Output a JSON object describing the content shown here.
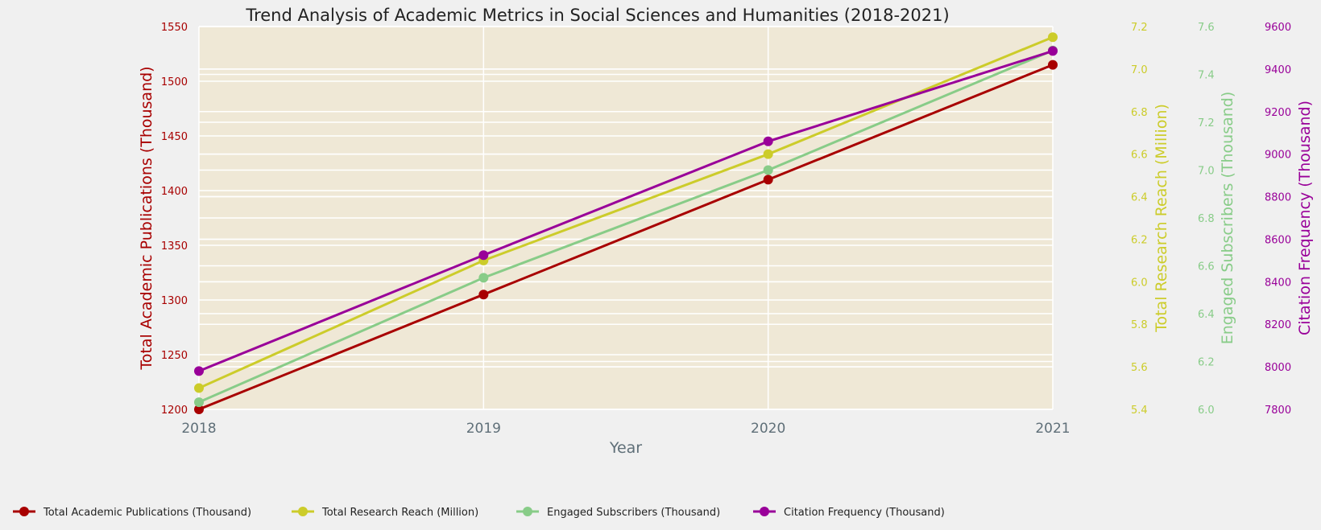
{
  "chart_data": {
    "type": "line",
    "title": "Trend Analysis of Academic Metrics in Social Sciences and Humanities (2018-2021)",
    "xlabel": "Year",
    "categories": [
      "2018",
      "2019",
      "2020",
      "2021"
    ],
    "series": [
      {
        "name": "Total Academic Publications (Thousand)",
        "axis_label": "Total Academic Publications (Thousand)",
        "color": "#a80000",
        "values": [
          1200,
          1305,
          1410,
          1515
        ],
        "ylim": [
          1200,
          1550
        ],
        "ticks": [
          1200,
          1250,
          1300,
          1350,
          1400,
          1450,
          1500,
          1550
        ]
      },
      {
        "name": "Total Research Reach (Million)",
        "axis_label": "Total Research Reach (Million)",
        "color": "#cccc2a",
        "values": [
          5.5,
          6.1,
          6.6,
          7.15
        ],
        "ylim": [
          5.4,
          7.2
        ],
        "ticks": [
          5.4,
          5.6,
          5.8,
          6.0,
          6.2,
          6.4,
          6.6,
          6.8,
          7.0,
          7.2
        ]
      },
      {
        "name": "Engaged Subscribers (Thousand)",
        "axis_label": "Engaged Subscribers (Thousand)",
        "color": "#88cc88",
        "values": [
          6.03,
          6.55,
          7.0,
          7.5
        ],
        "ylim": [
          6.0,
          7.6
        ],
        "ticks": [
          6.0,
          6.2,
          6.4,
          6.6,
          6.8,
          7.0,
          7.2,
          7.4,
          7.6
        ]
      },
      {
        "name": "Citation Frequency (Thousand)",
        "axis_label": "Citation Frequency (Thousand)",
        "color": "#990099",
        "values": [
          7980,
          8525,
          9060,
          9485
        ],
        "ylim": [
          7800,
          9600
        ],
        "ticks": [
          7800,
          8000,
          8200,
          8400,
          8600,
          8800,
          9000,
          9200,
          9400,
          9600
        ]
      }
    ],
    "grid": true,
    "legend_position": "bottom"
  }
}
